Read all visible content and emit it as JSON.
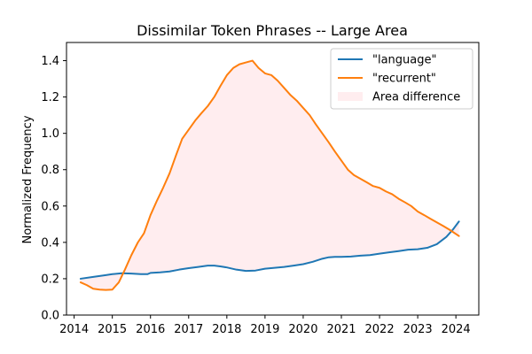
{
  "chart_data": {
    "type": "line",
    "title": "Dissimilar Token Phrases -- Large Area",
    "xlabel": "",
    "ylabel": "Normalized Frequency",
    "xlim": [
      2013.8,
      2024.6
    ],
    "ylim": [
      0.0,
      1.5
    ],
    "xticks": [
      2014,
      2015,
      2016,
      2017,
      2018,
      2019,
      2020,
      2021,
      2022,
      2023,
      2024
    ],
    "yticks": [
      "0.0",
      "0.2",
      "0.4",
      "0.6",
      "0.8",
      "1.0",
      "1.2",
      "1.4"
    ],
    "legend_position": "top-right",
    "grid": false,
    "series": [
      {
        "name": "\"language\"",
        "color": "#1f77b4",
        "x": [
          2014.17,
          2014.5,
          2014.83,
          2015.0,
          2015.25,
          2015.5,
          2015.75,
          2015.92,
          2016.0,
          2016.25,
          2016.5,
          2016.75,
          2017.0,
          2017.25,
          2017.5,
          2017.67,
          2017.83,
          2018.0,
          2018.25,
          2018.5,
          2018.75,
          2019.0,
          2019.25,
          2019.5,
          2019.75,
          2020.0,
          2020.25,
          2020.5,
          2020.67,
          2020.83,
          2021.0,
          2021.25,
          2021.5,
          2021.75,
          2022.0,
          2022.25,
          2022.5,
          2022.75,
          2023.0,
          2023.25,
          2023.5,
          2023.75,
          2023.92,
          2024.08
        ],
        "values": [
          0.2,
          0.21,
          0.22,
          0.225,
          0.23,
          0.228,
          0.225,
          0.225,
          0.232,
          0.235,
          0.24,
          0.25,
          0.258,
          0.265,
          0.272,
          0.272,
          0.268,
          0.262,
          0.25,
          0.243,
          0.245,
          0.255,
          0.26,
          0.265,
          0.272,
          0.28,
          0.293,
          0.31,
          0.318,
          0.32,
          0.32,
          0.322,
          0.327,
          0.33,
          0.338,
          0.345,
          0.352,
          0.36,
          0.362,
          0.37,
          0.39,
          0.43,
          0.47,
          0.515
        ]
      },
      {
        "name": "\"recurrent\"",
        "color": "#ff7f0e",
        "x": [
          2014.17,
          2014.33,
          2014.5,
          2014.67,
          2014.83,
          2015.0,
          2015.17,
          2015.33,
          2015.5,
          2015.67,
          2015.83,
          2016.0,
          2016.17,
          2016.33,
          2016.5,
          2016.67,
          2016.83,
          2017.0,
          2017.17,
          2017.33,
          2017.5,
          2017.67,
          2017.83,
          2018.0,
          2018.17,
          2018.33,
          2018.5,
          2018.67,
          2018.83,
          2019.0,
          2019.17,
          2019.33,
          2019.5,
          2019.67,
          2019.83,
          2020.0,
          2020.17,
          2020.33,
          2020.5,
          2020.67,
          2020.83,
          2021.0,
          2021.17,
          2021.33,
          2021.5,
          2021.67,
          2021.83,
          2022.0,
          2022.17,
          2022.33,
          2022.5,
          2022.67,
          2022.83,
          2023.0,
          2023.17,
          2023.33,
          2023.5,
          2023.67,
          2023.83,
          2024.08
        ],
        "values": [
          0.18,
          0.165,
          0.145,
          0.14,
          0.138,
          0.14,
          0.18,
          0.25,
          0.33,
          0.4,
          0.45,
          0.55,
          0.63,
          0.7,
          0.78,
          0.88,
          0.97,
          1.02,
          1.07,
          1.11,
          1.15,
          1.2,
          1.26,
          1.32,
          1.36,
          1.38,
          1.39,
          1.4,
          1.36,
          1.33,
          1.32,
          1.29,
          1.25,
          1.21,
          1.18,
          1.14,
          1.1,
          1.05,
          1.0,
          0.95,
          0.9,
          0.85,
          0.8,
          0.77,
          0.75,
          0.73,
          0.71,
          0.7,
          0.68,
          0.665,
          0.64,
          0.62,
          0.6,
          0.57,
          0.55,
          0.53,
          0.51,
          0.49,
          0.47,
          0.435
        ]
      }
    ],
    "fill": {
      "name": "Area difference",
      "color": "#ffb6c1",
      "opacity": 0.25
    }
  }
}
